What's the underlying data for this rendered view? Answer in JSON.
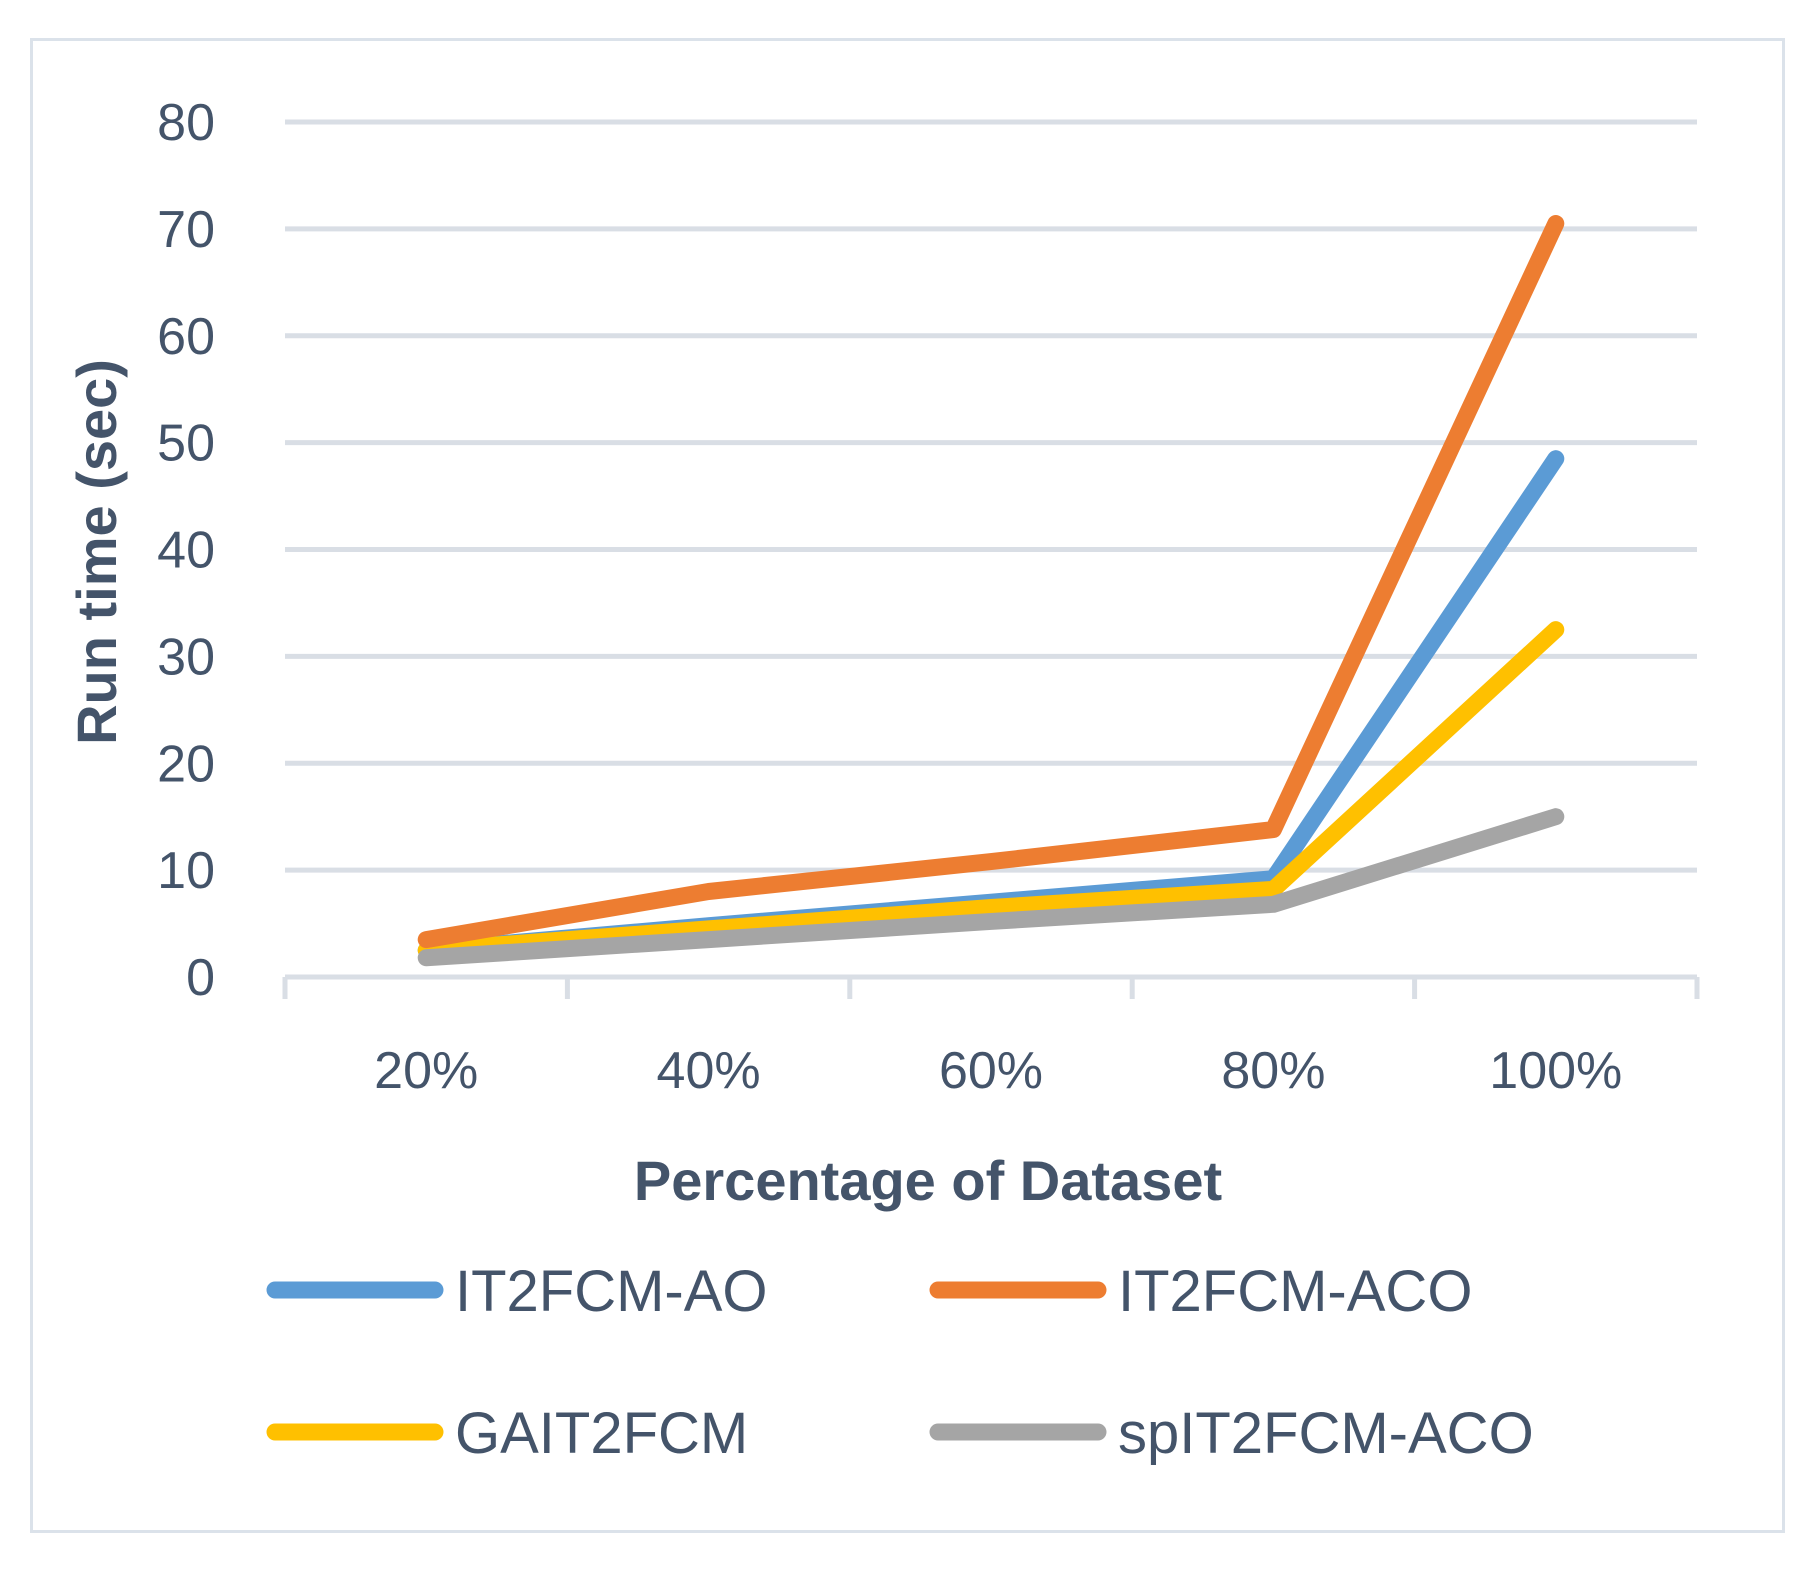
{
  "chart_data": {
    "type": "line",
    "title": "",
    "xlabel": "Percentage of Dataset",
    "ylabel": "Run time (sec)",
    "categories": [
      "20%",
      "40%",
      "60%",
      "80%",
      "100%"
    ],
    "ylim": [
      0,
      80
    ],
    "yticks": [
      0,
      10,
      20,
      30,
      40,
      50,
      60,
      70,
      80
    ],
    "grid": true,
    "legend_position": "bottom",
    "series": [
      {
        "name": "IT2FCM-AO",
        "color": "#5b9bd5",
        "values": [
          2.5,
          4.8,
          7.0,
          9.2,
          48.5
        ]
      },
      {
        "name": "IT2FCM-ACO",
        "color": "#ed7d31",
        "values": [
          3.5,
          8.0,
          10.8,
          13.8,
          70.5
        ]
      },
      {
        "name": "GAIT2FCM",
        "color": "#ffc000",
        "values": [
          2.5,
          4.5,
          6.5,
          8.2,
          32.5
        ]
      },
      {
        "name": "spIT2FCM-ACO",
        "color": "#a5a5a5",
        "values": [
          1.8,
          3.5,
          5.2,
          6.8,
          15.0
        ]
      }
    ]
  }
}
